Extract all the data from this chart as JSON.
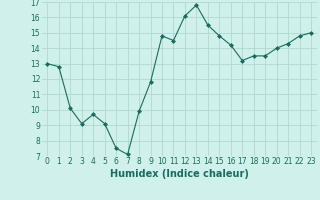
{
  "x": [
    0,
    1,
    2,
    3,
    4,
    5,
    6,
    7,
    8,
    9,
    10,
    11,
    12,
    13,
    14,
    15,
    16,
    17,
    18,
    19,
    20,
    21,
    22,
    23
  ],
  "y": [
    13.0,
    12.8,
    10.1,
    9.1,
    9.7,
    9.1,
    7.5,
    7.1,
    9.9,
    11.8,
    14.8,
    14.5,
    16.1,
    16.8,
    15.5,
    14.8,
    14.2,
    13.2,
    13.5,
    13.5,
    14.0,
    14.3,
    14.8,
    15.0
  ],
  "xlabel": "Humidex (Indice chaleur)",
  "ylim": [
    7,
    17
  ],
  "xlim": [
    -0.5,
    23.5
  ],
  "yticks": [
    7,
    8,
    9,
    10,
    11,
    12,
    13,
    14,
    15,
    16,
    17
  ],
  "xticks": [
    0,
    1,
    2,
    3,
    4,
    5,
    6,
    7,
    8,
    9,
    10,
    11,
    12,
    13,
    14,
    15,
    16,
    17,
    18,
    19,
    20,
    21,
    22,
    23
  ],
  "line_color": "#1a6b5e",
  "marker": "D",
  "marker_size": 2.0,
  "bg_color": "#cff0eb",
  "grid_color": "#b0d8d2",
  "xlabel_color": "#1a6b5e",
  "tick_fontsize": 5.5,
  "xlabel_fontsize": 7.0
}
